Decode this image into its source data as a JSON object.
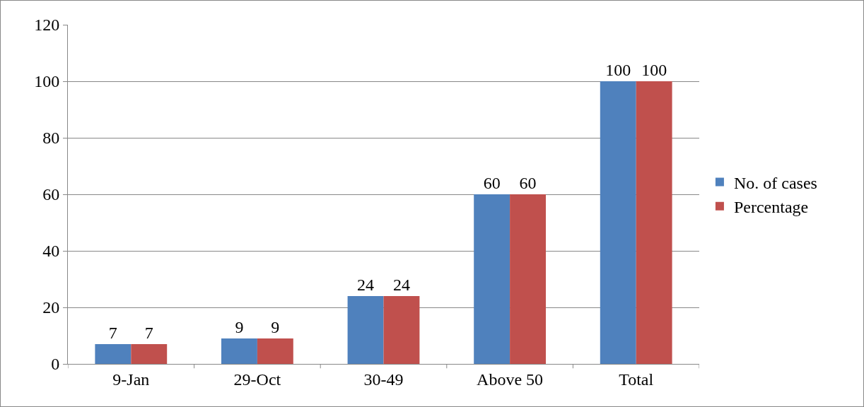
{
  "chart_data": {
    "type": "bar",
    "categories": [
      "9-Jan",
      "29-Oct",
      "30-49",
      "Above 50",
      "Total"
    ],
    "series": [
      {
        "name": "No. of cases",
        "color": "#4f81bd",
        "values": [
          7,
          9,
          24,
          60,
          100
        ]
      },
      {
        "name": "Percentage",
        "color": "#c0504d",
        "values": [
          7,
          9,
          24,
          60,
          100
        ]
      }
    ],
    "ylim": [
      0,
      120
    ],
    "yticks": [
      0,
      20,
      40,
      60,
      80,
      100,
      120
    ],
    "grid": "y",
    "legend": "right",
    "data_labels": true
  }
}
